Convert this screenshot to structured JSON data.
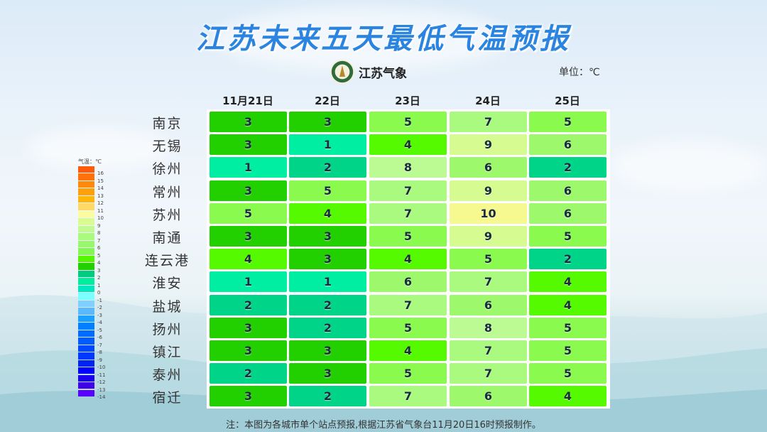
{
  "title": "江苏未来五天最低气温预报",
  "logo": {
    "icon": "jiangsu-meteorology-emblem",
    "text": "江苏气象"
  },
  "unit_label": "单位：℃",
  "legend": {
    "title": "气温：℃",
    "ticks": [
      "16",
      "15",
      "14",
      "13",
      "12",
      "11",
      "10",
      "9",
      "8",
      "7",
      "6",
      "5",
      "4",
      "3",
      "2",
      "1",
      "0",
      "-1",
      "-2",
      "-3",
      "-4",
      "-5",
      "-6",
      "-7",
      "-8",
      "-9",
      "-10",
      "-11",
      "-12",
      "-13",
      "-14"
    ],
    "colors": [
      "#ff5a0a",
      "#ff720a",
      "#ff8a0a",
      "#ffa00a",
      "#ffb60a",
      "#ffd966",
      "#fbfba0",
      "#d9fb90",
      "#c0fa90",
      "#aafa80",
      "#96f86a",
      "#82f850",
      "#55f700",
      "#22d000",
      "#00cc80",
      "#00ee9e",
      "#00e8c0",
      "#7affff",
      "#7fd0ff",
      "#5ab8ff",
      "#1aa0ff",
      "#0080ff",
      "#006cff",
      "#005cff",
      "#0048ff",
      "#0038ff",
      "#0024f0",
      "#0000ff",
      "#1a00f0",
      "#4000e8",
      "#5a00ff"
    ]
  },
  "chart_data": {
    "type": "table",
    "title": "江苏未来五天最低气温预报",
    "unit": "℃",
    "columns": [
      "11月21日",
      "22日",
      "23日",
      "24日",
      "25日"
    ],
    "rows": [
      {
        "city": "南京",
        "values": [
          3,
          3,
          5,
          7,
          5
        ]
      },
      {
        "city": "无锡",
        "values": [
          3,
          1,
          4,
          9,
          6
        ]
      },
      {
        "city": "徐州",
        "values": [
          1,
          2,
          8,
          6,
          2
        ]
      },
      {
        "city": "常州",
        "values": [
          3,
          5,
          7,
          9,
          6
        ]
      },
      {
        "city": "苏州",
        "values": [
          5,
          4,
          7,
          10,
          6
        ]
      },
      {
        "city": "南通",
        "values": [
          3,
          3,
          5,
          9,
          5
        ]
      },
      {
        "city": "连云港",
        "values": [
          4,
          3,
          4,
          5,
          2
        ]
      },
      {
        "city": "淮安",
        "values": [
          1,
          1,
          6,
          7,
          4
        ]
      },
      {
        "city": "盐城",
        "values": [
          2,
          2,
          7,
          6,
          4
        ]
      },
      {
        "city": "扬州",
        "values": [
          3,
          2,
          5,
          8,
          5
        ]
      },
      {
        "city": "镇江",
        "values": [
          3,
          3,
          4,
          7,
          5
        ]
      },
      {
        "city": "泰州",
        "values": [
          2,
          3,
          5,
          7,
          5
        ]
      },
      {
        "city": "宿迁",
        "values": [
          3,
          2,
          7,
          6,
          4
        ]
      }
    ],
    "value_colors": {
      "1": "#00eea2",
      "2": "#00d488",
      "3": "#22d000",
      "4": "#55fa00",
      "5": "#8afb4e",
      "6": "#9ef86c",
      "7": "#aafa80",
      "8": "#bcfa94",
      "9": "#d6fb90",
      "10": "#f6f990"
    }
  },
  "note": "注：本图为各城市单个站点预报,根据江苏省气象台11月20日16时预报制作。"
}
